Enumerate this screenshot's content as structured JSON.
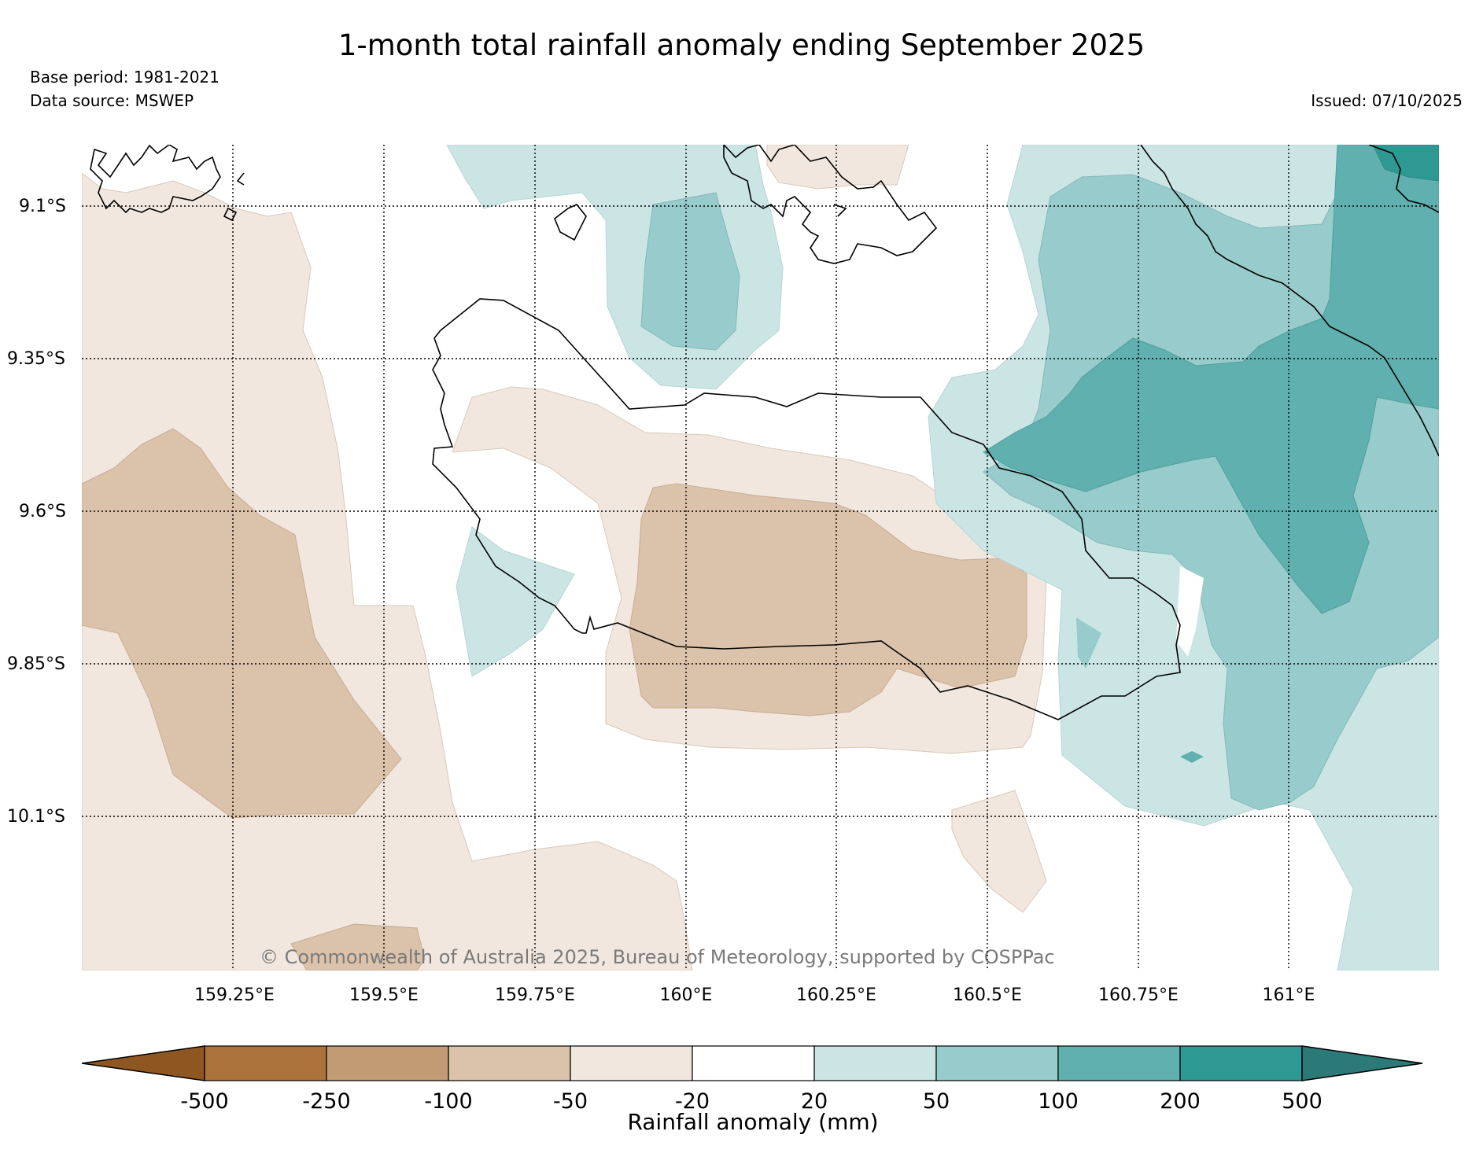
{
  "title": "1-month total rainfall anomaly ending September 2025",
  "base_period": "Base period: 1981-2021",
  "data_source": "Data source: MSWEP",
  "issued": "Issued: 07/10/2025",
  "copyright": "© Commonwealth of Australia 2025, Bureau of Meteorology, supported by COSPPac",
  "lat_labels": [
    "9.1°S",
    "9.35°S",
    "9.6°S",
    "9.85°S",
    "10.1°S"
  ],
  "lon_labels": [
    "159.25°E",
    "159.5°E",
    "159.75°E",
    "160°E",
    "160.25°E",
    "160.5°E",
    "160.75°E",
    "161°E"
  ],
  "colorbar": {
    "title": "Rainfall anomaly (mm)",
    "labels": [
      "-500",
      "-250",
      "-100",
      "-50",
      "-20",
      "20",
      "50",
      "100",
      "200",
      "500"
    ],
    "colors": [
      "#8e5722",
      "#ab733a",
      "#c29a73",
      "#dbc2aa",
      "#f1e7de",
      "#ffffff",
      "#cbe5e4",
      "#98cbcb",
      "#60b0af",
      "#2e9893",
      "#2b7a78"
    ]
  }
}
